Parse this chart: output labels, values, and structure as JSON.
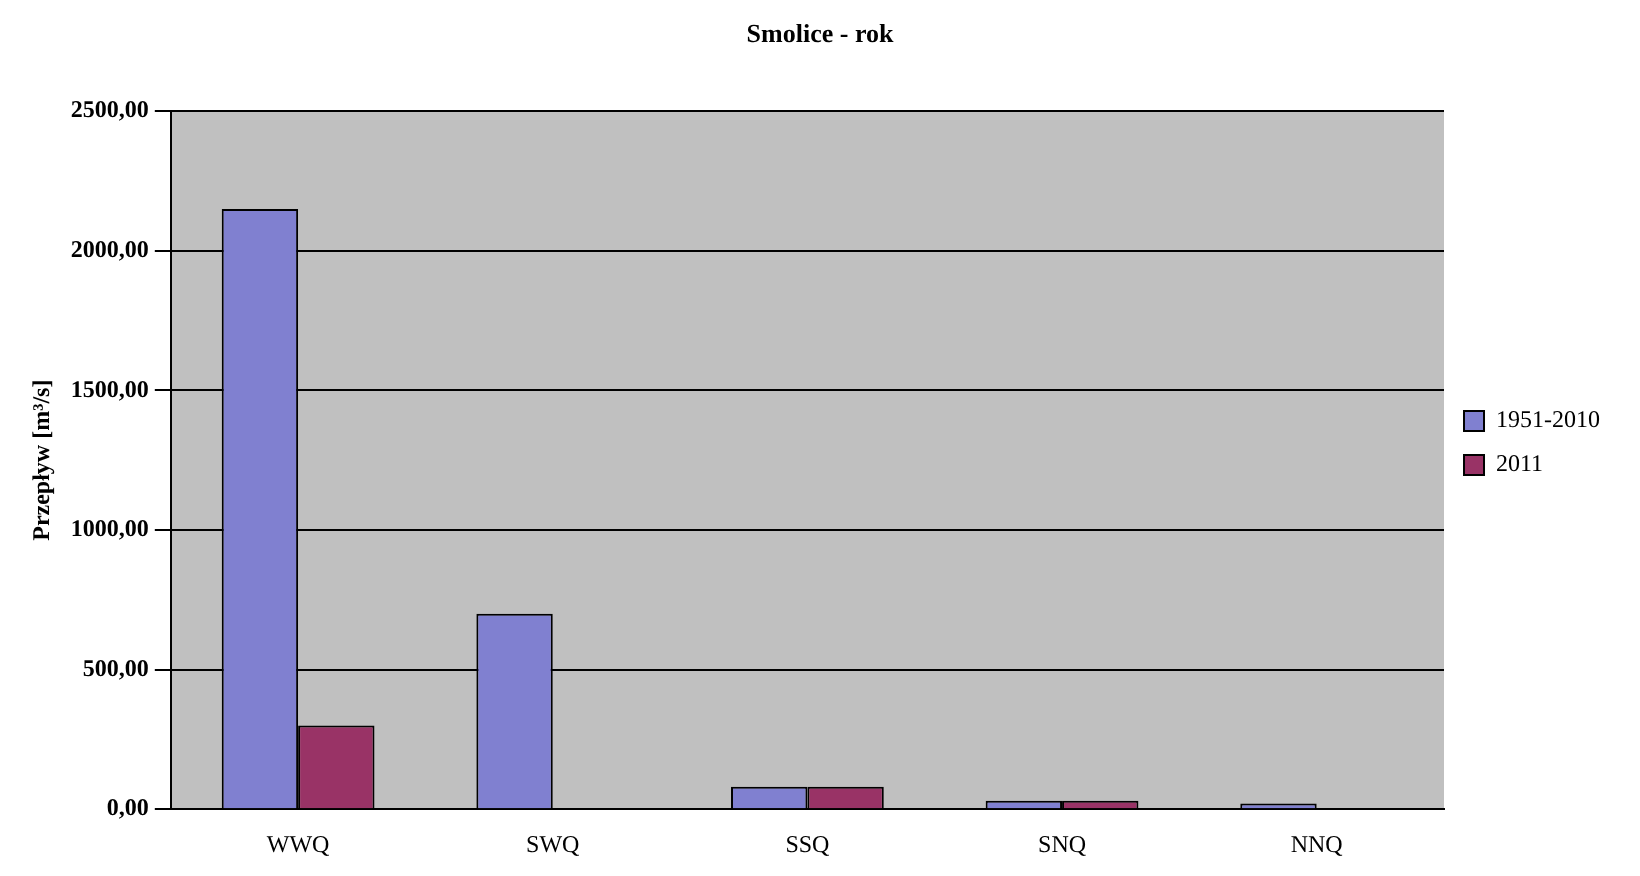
{
  "chart_data": {
    "type": "bar",
    "title": "Smolice - rok",
    "ylabel": "Przepływ [m³/s]",
    "categories": [
      "WWQ",
      "SWQ",
      "SSQ",
      "SNQ",
      "NNQ"
    ],
    "series": [
      {
        "name": "1951-2010",
        "color": "#8080d0",
        "values": [
          2150,
          700,
          80,
          30,
          20
        ]
      },
      {
        "name": "2011",
        "color": "#993366",
        "values": [
          300,
          null,
          80,
          30,
          null
        ]
      }
    ],
    "ylim": [
      0,
      2500
    ],
    "yticks": [
      {
        "value": 0,
        "label": "0,00"
      },
      {
        "value": 500,
        "label": "500,00"
      },
      {
        "value": 1000,
        "label": "1000,00"
      },
      {
        "value": 1500,
        "label": "1500,00"
      },
      {
        "value": 2000,
        "label": "2000,00"
      },
      {
        "value": 2500,
        "label": "2500,00"
      }
    ],
    "grid": "y",
    "legend": "right"
  }
}
